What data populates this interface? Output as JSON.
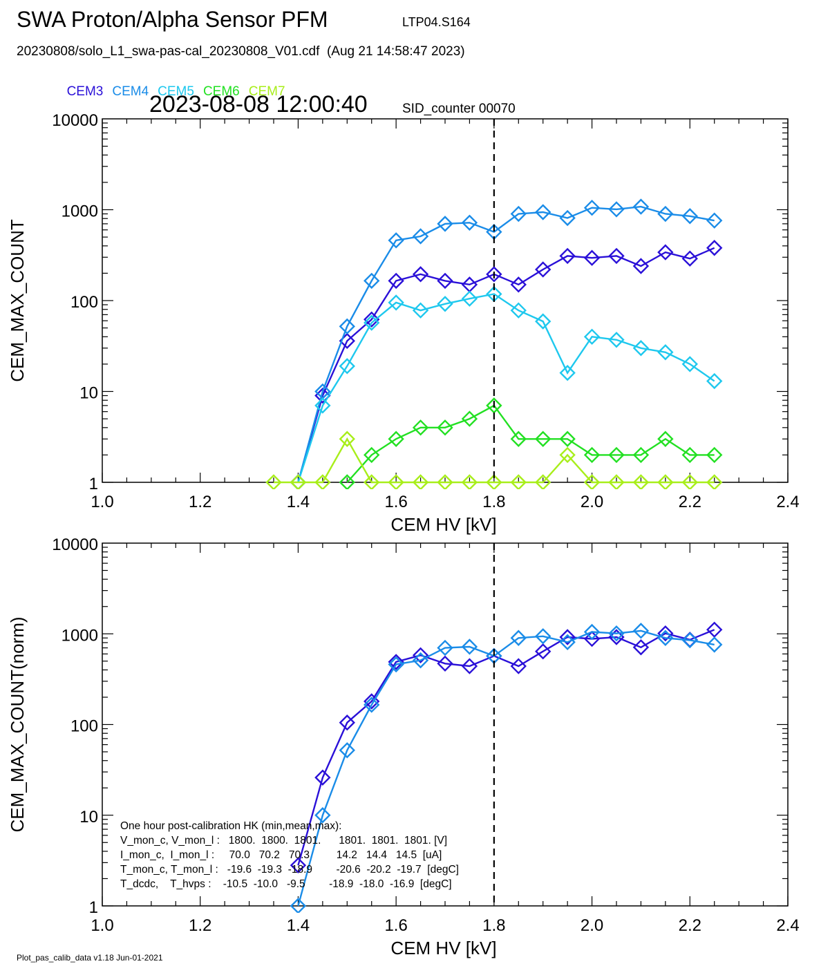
{
  "header": {
    "title": "SWA Proton/Alpha Sensor PFM",
    "subtitle": "LTP04.S164",
    "file_line": "20230808/solo_L1_swa-pas-cal_20230808_V01.cdf  (Aug 21 14:58:47 2023)",
    "datetime": "2023-08-08 12:00:40",
    "sid": "SID_counter 00070"
  },
  "legend": [
    {
      "name": "CEM3",
      "color": "#2a10d8"
    },
    {
      "name": "CEM4",
      "color": "#1a8ce8"
    },
    {
      "name": "CEM5",
      "color": "#1ec8ee"
    },
    {
      "name": "CEM6",
      "color": "#22e022"
    },
    {
      "name": "CEM7",
      "color": "#a8ee1a"
    }
  ],
  "footer": "Plot_pas_calib_data v1.18 Jun-01-2021",
  "hk_box": {
    "lines": [
      "One hour post-calibration HK (min,mean,max):",
      "V_mon_c, V_mon_l :   1800.  1800.  1801.      1801.  1801.  1801. [V]",
      "I_mon_c,  I_mon_l :     70.0   70.2   70.3         14.2   14.4   14.5  [uA]",
      "T_mon_c, T_mon_l :   -19.6  -19.3  -18.9        -20.6  -20.2  -19.7  [degC]",
      "T_dcdc,    T_hvps :    -10.5  -10.0   -9.5        -18.9  -18.0  -16.9  [degC]"
    ]
  },
  "chart_data": [
    {
      "type": "line",
      "xlabel": "CEM HV [kV]",
      "ylabel": "CEM_MAX_COUNT",
      "xlim": [
        1.0,
        2.4
      ],
      "ylim": [
        1,
        10000
      ],
      "yscale": "log",
      "x_ticks": [
        "1.0",
        "1.2",
        "1.4",
        "1.6",
        "1.8",
        "2.0",
        "2.2",
        "2.4"
      ],
      "y_ticks": [
        "1",
        "10",
        "100",
        "1000",
        "10000"
      ],
      "vline": 1.8,
      "series": [
        {
          "name": "CEM3",
          "color": "#2a10d8",
          "x": [
            1.4,
            1.45,
            1.5,
            1.55,
            1.6,
            1.65,
            1.7,
            1.75,
            1.8,
            1.85,
            1.9,
            1.95,
            2.0,
            2.05,
            2.1,
            2.15,
            2.2,
            2.25
          ],
          "y": [
            1,
            9,
            36,
            62,
            165,
            195,
            165,
            150,
            195,
            150,
            220,
            310,
            295,
            310,
            240,
            340,
            290,
            380
          ]
        },
        {
          "name": "CEM4",
          "color": "#1a8ce8",
          "x": [
            1.4,
            1.45,
            1.5,
            1.55,
            1.6,
            1.65,
            1.7,
            1.75,
            1.8,
            1.85,
            1.9,
            1.95,
            2.0,
            2.05,
            2.1,
            2.15,
            2.2,
            2.25
          ],
          "y": [
            1,
            10,
            52,
            165,
            460,
            510,
            700,
            720,
            570,
            900,
            940,
            810,
            1050,
            1010,
            1080,
            900,
            850,
            760
          ]
        },
        {
          "name": "CEM5",
          "color": "#1ec8ee",
          "x": [
            1.4,
            1.45,
            1.5,
            1.55,
            1.6,
            1.65,
            1.7,
            1.75,
            1.8,
            1.85,
            1.9,
            1.95,
            2.0,
            2.05,
            2.1,
            2.15,
            2.2,
            2.25
          ],
          "y": [
            1,
            7,
            19,
            57,
            95,
            78,
            92,
            105,
            118,
            78,
            59,
            16,
            40,
            37,
            30,
            27,
            20,
            13
          ]
        },
        {
          "name": "CEM6",
          "color": "#22e022",
          "x": [
            1.5,
            1.55,
            1.6,
            1.65,
            1.7,
            1.75,
            1.8,
            1.85,
            1.9,
            1.95,
            2.0,
            2.05,
            2.1,
            2.15,
            2.2,
            2.25
          ],
          "y": [
            1,
            2,
            3,
            4,
            4,
            5,
            7,
            3,
            3,
            3,
            2,
            2,
            2,
            3,
            2,
            2
          ]
        },
        {
          "name": "CEM7",
          "color": "#a8ee1a",
          "x": [
            1.35,
            1.4,
            1.45,
            1.5,
            1.55,
            1.6,
            1.65,
            1.7,
            1.75,
            1.8,
            1.85,
            1.9,
            1.95,
            2.0,
            2.05,
            2.1,
            2.15,
            2.2,
            2.25
          ],
          "y": [
            1,
            1,
            1,
            3,
            1,
            1,
            1,
            1,
            1,
            1,
            1,
            1,
            2,
            1,
            1,
            1,
            1,
            1,
            1
          ]
        }
      ]
    },
    {
      "type": "line",
      "xlabel": "CEM HV [kV]",
      "ylabel": "CEM_MAX_COUNT(norm)",
      "xlim": [
        1.0,
        2.4
      ],
      "ylim": [
        1,
        10000
      ],
      "yscale": "log",
      "x_ticks": [
        "1.0",
        "1.2",
        "1.4",
        "1.6",
        "1.8",
        "2.0",
        "2.2",
        "2.4"
      ],
      "y_ticks": [
        "1",
        "10",
        "100",
        "1000",
        "10000"
      ],
      "vline": 1.8,
      "series": [
        {
          "name": "CEM3",
          "color": "#2a10d8",
          "x": [
            1.4,
            1.45,
            1.5,
            1.55,
            1.6,
            1.65,
            1.7,
            1.75,
            1.8,
            1.85,
            1.9,
            1.95,
            2.0,
            2.05,
            2.1,
            2.15,
            2.2,
            2.25
          ],
          "y": [
            2.8,
            26,
            105,
            180,
            490,
            580,
            470,
            440,
            570,
            440,
            640,
            920,
            880,
            920,
            710,
            1010,
            860,
            1110
          ]
        },
        {
          "name": "CEM4",
          "color": "#1a8ce8",
          "x": [
            1.4,
            1.45,
            1.5,
            1.55,
            1.6,
            1.65,
            1.7,
            1.75,
            1.8,
            1.85,
            1.9,
            1.95,
            2.0,
            2.05,
            2.1,
            2.15,
            2.2,
            2.25
          ],
          "y": [
            1,
            10,
            52,
            165,
            460,
            510,
            700,
            720,
            570,
            900,
            940,
            810,
            1050,
            1010,
            1080,
            900,
            850,
            760
          ]
        }
      ]
    }
  ]
}
